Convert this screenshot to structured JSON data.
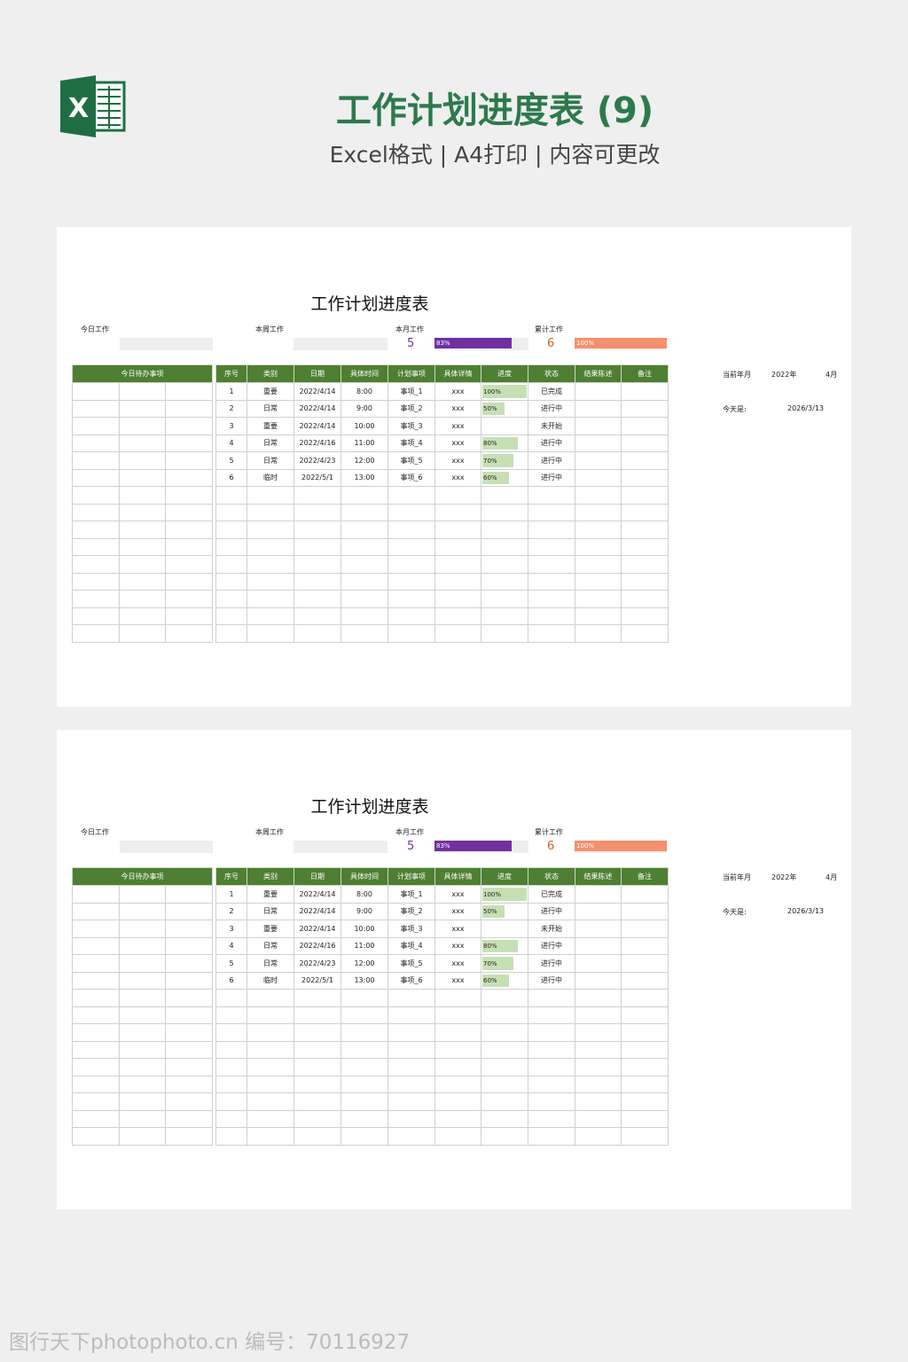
{
  "header": {
    "title": "工作计划进度表 (9)",
    "subtitle": "Excel格式 | A4打印 | 内容可更改",
    "logo_icon": "excel-logo-icon",
    "logo_letter": "X"
  },
  "sheet": {
    "title": "工作计划进度表",
    "today_label": "今日工作",
    "week_label": "本周工作",
    "month_label": "本月工作",
    "total_label": "累计工作",
    "month_count": "5",
    "month_pct_label": "83%",
    "month_pct": 0.83,
    "month_color": "#7030a0",
    "total_count": "6",
    "total_pct_label": "100%",
    "total_pct": 1.0,
    "total_color": "#f4906e",
    "todo_header": "今日待办事项",
    "columns": [
      "序号",
      "类别",
      "日期",
      "具体时间",
      "计划事项",
      "具体详情",
      "进度",
      "状态",
      "结果陈述",
      "备注"
    ],
    "rows": [
      [
        "1",
        "重要",
        "2022/4/14",
        "8:00",
        "事项_1",
        "xxx",
        "100%",
        "已完成",
        "",
        ""
      ],
      [
        "2",
        "日常",
        "2022/4/14",
        "9:00",
        "事项_2",
        "xxx",
        "50%",
        "进行中",
        "",
        ""
      ],
      [
        "3",
        "重要",
        "2022/4/14",
        "10:00",
        "事项_3",
        "xxx",
        "",
        "未开始",
        "",
        ""
      ],
      [
        "4",
        "日常",
        "2022/4/16",
        "11:00",
        "事项_4",
        "xxx",
        "80%",
        "进行中",
        "",
        ""
      ],
      [
        "5",
        "日常",
        "2022/4/23",
        "12:00",
        "事项_5",
        "xxx",
        "70%",
        "进行中",
        "",
        ""
      ],
      [
        "6",
        "临时",
        "2022/5/1",
        "13:00",
        "事项_6",
        "xxx",
        "60%",
        "进行中",
        "",
        ""
      ]
    ],
    "current_month_label": "当前年月",
    "current_year": "2022年",
    "current_month": "4月",
    "today_is_label": "今天是:",
    "today_date": "2026/3/13"
  },
  "watermark": "图行天下photophoto.cn 编号：70116927"
}
